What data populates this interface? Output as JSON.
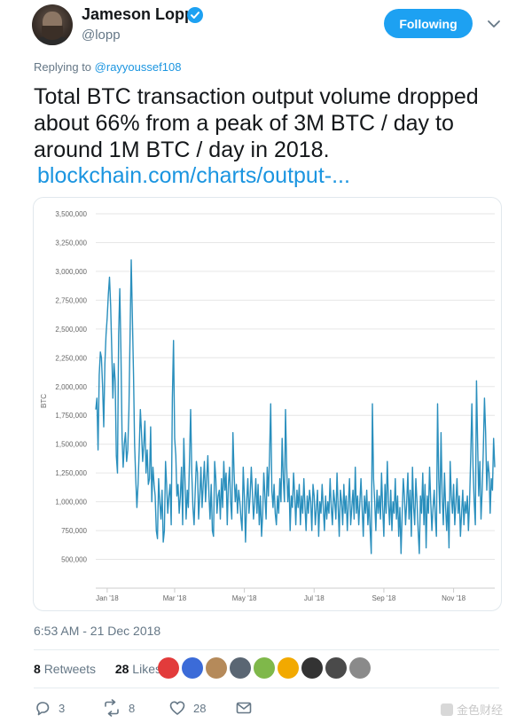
{
  "author": {
    "name": "Jameson Lopp",
    "handle": "@lopp",
    "verified": true
  },
  "follow_button_label": "Following",
  "replying": {
    "prefix": "Replying to",
    "to": "@rayyoussef108"
  },
  "tweet": {
    "text": "Total BTC transaction output volume dropped about 66% from a peak of 3M BTC / day to around 1M BTC / day in 2018.",
    "link": "blockchain.com/charts/output-..."
  },
  "chart_data": {
    "type": "line",
    "title": "",
    "xlabel": "",
    "ylabel": "BTC",
    "ylim": [
      250000,
      3500000
    ],
    "y_ticks": [
      "500,000",
      "750,000",
      "1,000,000",
      "1,250,000",
      "1,500,000",
      "1,750,000",
      "2,000,000",
      "2,250,000",
      "2,500,000",
      "2,750,000",
      "3,000,000",
      "3,250,000",
      "3,500,000"
    ],
    "y_tick_values": [
      500000,
      750000,
      1000000,
      1250000,
      1500000,
      1750000,
      2000000,
      2250000,
      2500000,
      2750000,
      3000000,
      3250000,
      3500000
    ],
    "x_ticks": [
      "Jan '18",
      "Mar '18",
      "May '18",
      "Jul '18",
      "Sep '18",
      "Nov '18"
    ],
    "x_tick_days": [
      10,
      69,
      130,
      191,
      252,
      313
    ],
    "grid": true,
    "color": "#2a8fbd",
    "series": [
      {
        "values": [
          1800000,
          1900000,
          1450000,
          2100000,
          2300000,
          2250000,
          2000000,
          1650000,
          2200000,
          2450000,
          2600000,
          2800000,
          2950000,
          2700000,
          2300000,
          1900000,
          2200000,
          2050000,
          1400000,
          1250000,
          2450000,
          2850000,
          2300000,
          1550000,
          1300000,
          1500000,
          1600000,
          1350000,
          1450000,
          1800000,
          2450000,
          3100000,
          2600000,
          2100000,
          1500000,
          1200000,
          950000,
          1150000,
          1450000,
          1800000,
          1600000,
          1350000,
          1500000,
          1700000,
          1250000,
          1450000,
          1150000,
          1200000,
          1650000,
          1000000,
          1300000,
          1150000,
          1050000,
          750000,
          680000,
          1200000,
          1000000,
          850000,
          1100000,
          650000,
          750000,
          1350000,
          1150000,
          900000,
          1050000,
          1150000,
          800000,
          1900000,
          2400000,
          1550000,
          1400000,
          1050000,
          1150000,
          900000,
          1050000,
          1300000,
          800000,
          1550000,
          1200000,
          850000,
          1100000,
          950000,
          1350000,
          1800000,
          1250000,
          950000,
          800000,
          1100000,
          1350000,
          1250000,
          850000,
          1050000,
          1300000,
          950000,
          1150000,
          1350000,
          1000000,
          1200000,
          1400000,
          1050000,
          850000,
          1150000,
          750000,
          700000,
          1350000,
          1200000,
          900000,
          1050000,
          1100000,
          850000,
          1200000,
          950000,
          1350000,
          1100000,
          1250000,
          800000,
          1150000,
          1300000,
          1000000,
          850000,
          1600000,
          1250000,
          1000000,
          1150000,
          900000,
          1100000,
          1000000,
          850000,
          750000,
          1300000,
          1050000,
          650000,
          1000000,
          1200000,
          900000,
          1050000,
          1300000,
          1100000,
          850000,
          1000000,
          1200000,
          900000,
          1150000,
          800000,
          1050000,
          700000,
          900000,
          1250000,
          1050000,
          850000,
          1300000,
          1050000,
          1400000,
          1850000,
          1100000,
          950000,
          1150000,
          900000,
          800000,
          1050000,
          900000,
          1200000,
          1000000,
          1550000,
          1200000,
          1000000,
          1800000,
          1300000,
          1000000,
          1200000,
          750000,
          1050000,
          950000,
          1250000,
          1050000,
          800000,
          1100000,
          950000,
          1150000,
          800000,
          1050000,
          900000,
          1200000,
          950000,
          750000,
          1050000,
          900000,
          1100000,
          1000000,
          750000,
          1150000,
          1050000,
          800000,
          950000,
          1100000,
          700000,
          1000000,
          900000,
          1150000,
          950000,
          750000,
          1050000,
          850000,
          1000000,
          900000,
          1200000,
          950000,
          800000,
          1100000,
          1000000,
          850000,
          1250000,
          950000,
          700000,
          1100000,
          1000000,
          800000,
          1150000,
          900000,
          1050000,
          750000,
          1000000,
          1200000,
          800000,
          950000,
          1100000,
          850000,
          1300000,
          900000,
          1050000,
          800000,
          1000000,
          1200000,
          950000,
          700000,
          1050000,
          900000,
          1100000,
          800000,
          1000000,
          750000,
          550000,
          1850000,
          1200000,
          1000000,
          750000,
          1100000,
          900000,
          1050000,
          850000,
          1250000,
          950000,
          700000,
          1150000,
          900000,
          1350000,
          1000000,
          800000,
          1100000,
          750000,
          1000000,
          900000,
          1200000,
          850000,
          1050000,
          700000,
          950000,
          550000,
          900000,
          1200000,
          1050000,
          800000,
          1000000,
          1250000,
          850000,
          1100000,
          700000,
          1300000,
          950000,
          800000,
          1200000,
          1000000,
          750000,
          550000,
          1050000,
          900000,
          1250000,
          800000,
          1150000,
          600000,
          1050000,
          900000,
          1300000,
          1000000,
          750000,
          950000,
          1100000,
          850000,
          700000,
          1850000,
          1200000,
          900000,
          1600000,
          1050000,
          800000,
          1250000,
          950000,
          750000,
          1000000,
          600000,
          1350000,
          1050000,
          900000,
          1150000,
          800000,
          1000000,
          1200000,
          900000,
          1050000,
          700000,
          900000,
          1100000,
          800000,
          1000000,
          900000,
          1050000,
          750000,
          1000000,
          1400000,
          1850000,
          1300000,
          1000000,
          800000,
          2050000,
          1500000,
          1050000,
          1350000,
          850000,
          1100000,
          1450000,
          1900000,
          1600000,
          1100000,
          1350000,
          1250000,
          900000,
          1200000,
          1100000,
          1550000,
          1300000
        ]
      }
    ]
  },
  "timestamp": "6:53 AM - 21 Dec 2018",
  "stats": {
    "retweets_count": "8",
    "retweets_label": "Retweets",
    "likes_count": "28",
    "likes_label": "Likes"
  },
  "likers": [
    "#e23b3b",
    "#3b6bd8",
    "#b58a5a",
    "#5a6673",
    "#7fb84a",
    "#f2a900",
    "#333333",
    "#4a4a4a",
    "#8a8a8a"
  ],
  "actions": {
    "replies": "3",
    "retweets": "8",
    "likes": "28"
  },
  "watermark": "金色财经"
}
